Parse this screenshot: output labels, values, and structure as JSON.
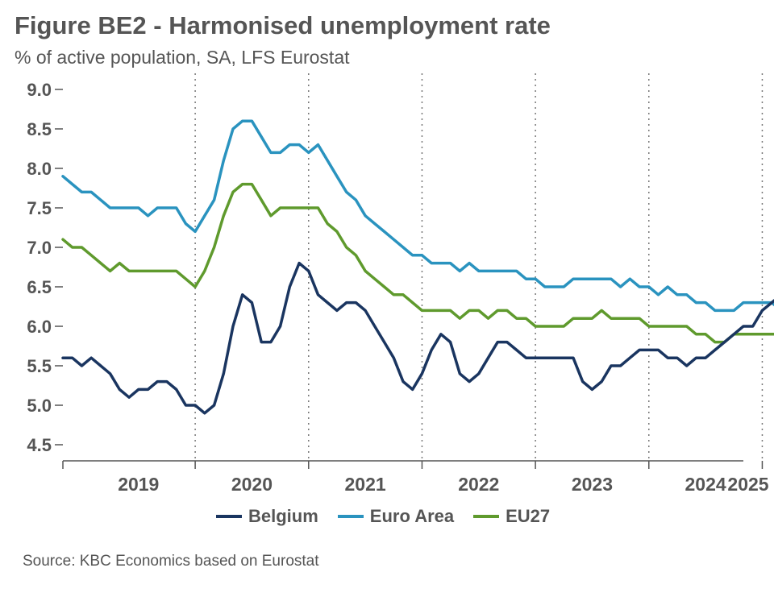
{
  "header": {
    "title": "Figure BE2 - Harmonised unemployment rate",
    "subtitle": "% of active population, SA, LFS Eurostat"
  },
  "footer": {
    "source": "Source: KBC Economics based on Eurostat"
  },
  "chart_data": {
    "type": "line",
    "x_start": "2018-10",
    "x_frequency": "monthly",
    "x_tick_labels": [
      "2019",
      "2020",
      "2021",
      "2022",
      "2023",
      "2024",
      "2025"
    ],
    "ylim": [
      4.5,
      9.0
    ],
    "y_ticks": [
      "9.0",
      "8.5",
      "8.0",
      "7.5",
      "7.0",
      "6.5",
      "6.0",
      "5.5",
      "5.0",
      "4.5"
    ],
    "vertical_gridlines": "dotted, at year boundaries",
    "legend_position": "bottom",
    "series": [
      {
        "name": "Belgium",
        "color": "#1a3560",
        "values": [
          5.6,
          5.6,
          5.5,
          5.6,
          5.5,
          5.4,
          5.2,
          5.1,
          5.2,
          5.2,
          5.3,
          5.3,
          5.2,
          5.0,
          5.0,
          4.9,
          5.0,
          5.4,
          6.0,
          6.4,
          6.3,
          5.8,
          5.8,
          6.0,
          6.5,
          6.8,
          6.7,
          6.4,
          6.3,
          6.2,
          6.3,
          6.3,
          6.2,
          6.0,
          5.8,
          5.6,
          5.3,
          5.2,
          5.4,
          5.7,
          5.9,
          5.8,
          5.4,
          5.3,
          5.4,
          5.6,
          5.8,
          5.8,
          5.7,
          5.6,
          5.6,
          5.6,
          5.6,
          5.6,
          5.6,
          5.3,
          5.2,
          5.3,
          5.5,
          5.5,
          5.6,
          5.7,
          5.7,
          5.7,
          5.6,
          5.6,
          5.5,
          5.6,
          5.6,
          5.7,
          5.8,
          5.9,
          6.0,
          6.0,
          6.2,
          6.3,
          6.4
        ]
      },
      {
        "name": "Euro Area",
        "color": "#2a93bf",
        "values": [
          7.9,
          7.8,
          7.7,
          7.7,
          7.6,
          7.5,
          7.5,
          7.5,
          7.5,
          7.4,
          7.5,
          7.5,
          7.5,
          7.3,
          7.2,
          7.4,
          7.6,
          8.1,
          8.5,
          8.6,
          8.6,
          8.4,
          8.2,
          8.2,
          8.3,
          8.3,
          8.2,
          8.3,
          8.1,
          7.9,
          7.7,
          7.6,
          7.4,
          7.3,
          7.2,
          7.1,
          7.0,
          6.9,
          6.9,
          6.8,
          6.8,
          6.8,
          6.7,
          6.8,
          6.7,
          6.7,
          6.7,
          6.7,
          6.7,
          6.6,
          6.6,
          6.5,
          6.5,
          6.5,
          6.6,
          6.6,
          6.6,
          6.6,
          6.6,
          6.5,
          6.6,
          6.5,
          6.5,
          6.4,
          6.5,
          6.4,
          6.4,
          6.3,
          6.3,
          6.2,
          6.2,
          6.2,
          6.3,
          6.3,
          6.3,
          6.3,
          6.2
        ]
      },
      {
        "name": "EU27",
        "color": "#5f9a2d",
        "values": [
          7.1,
          7.0,
          7.0,
          6.9,
          6.8,
          6.7,
          6.8,
          6.7,
          6.7,
          6.7,
          6.7,
          6.7,
          6.7,
          6.6,
          6.5,
          6.7,
          7.0,
          7.4,
          7.7,
          7.8,
          7.8,
          7.6,
          7.4,
          7.5,
          7.5,
          7.5,
          7.5,
          7.5,
          7.3,
          7.2,
          7.0,
          6.9,
          6.7,
          6.6,
          6.5,
          6.4,
          6.4,
          6.3,
          6.2,
          6.2,
          6.2,
          6.2,
          6.1,
          6.2,
          6.2,
          6.1,
          6.2,
          6.2,
          6.1,
          6.1,
          6.0,
          6.0,
          6.0,
          6.0,
          6.1,
          6.1,
          6.1,
          6.2,
          6.1,
          6.1,
          6.1,
          6.1,
          6.0,
          6.0,
          6.0,
          6.0,
          6.0,
          5.9,
          5.9,
          5.8,
          5.8,
          5.9,
          5.9,
          5.9,
          5.9,
          5.9,
          5.9
        ]
      }
    ]
  }
}
